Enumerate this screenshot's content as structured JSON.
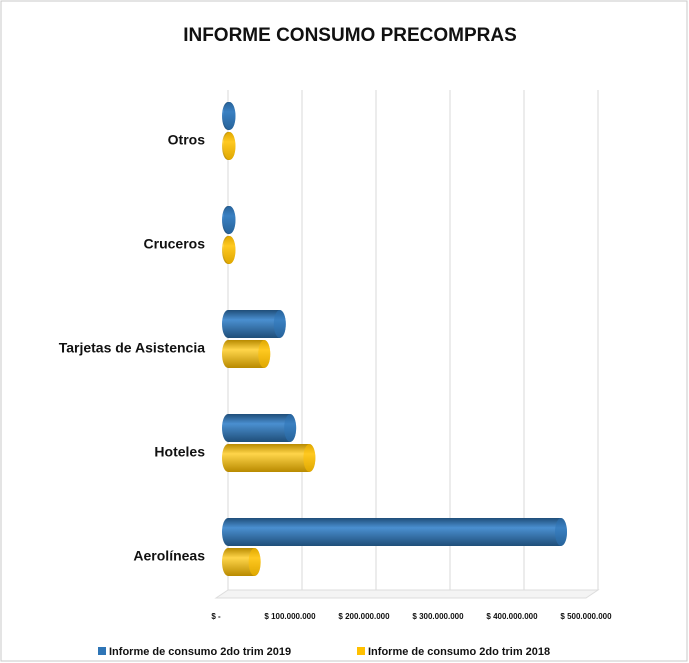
{
  "chart_data": {
    "type": "bar",
    "orientation": "horizontal",
    "style": "3d-cylinder",
    "title": "INFORME CONSUMO PRECOMPRAS",
    "categories": [
      "Otros",
      "Cruceros",
      "Tarjetas de Asistencia",
      "Hoteles",
      "Aerolíneas"
    ],
    "series": [
      {
        "name": "Informe de consumo 2do trim 2019",
        "color": "#2e75b6",
        "values": [
          2000000,
          2000000,
          70000000,
          84000000,
          450000000
        ]
      },
      {
        "name": "Informe de consumo 2do trim 2018",
        "color": "#ffc000",
        "values": [
          2000000,
          2000000,
          49000000,
          110000000,
          36000000
        ]
      }
    ],
    "xlim": [
      0,
      500000000
    ],
    "xticks": [
      {
        "value": 0,
        "label": "$ -"
      },
      {
        "value": 100000000,
        "label": "$ 100.000.000"
      },
      {
        "value": 200000000,
        "label": "$ 200.000.000"
      },
      {
        "value": 300000000,
        "label": "$ 300.000.000"
      },
      {
        "value": 400000000,
        "label": "$ 400.000.000"
      },
      {
        "value": 500000000,
        "label": "$ 500.000.000"
      }
    ],
    "grid": true,
    "legend": "bottom"
  }
}
